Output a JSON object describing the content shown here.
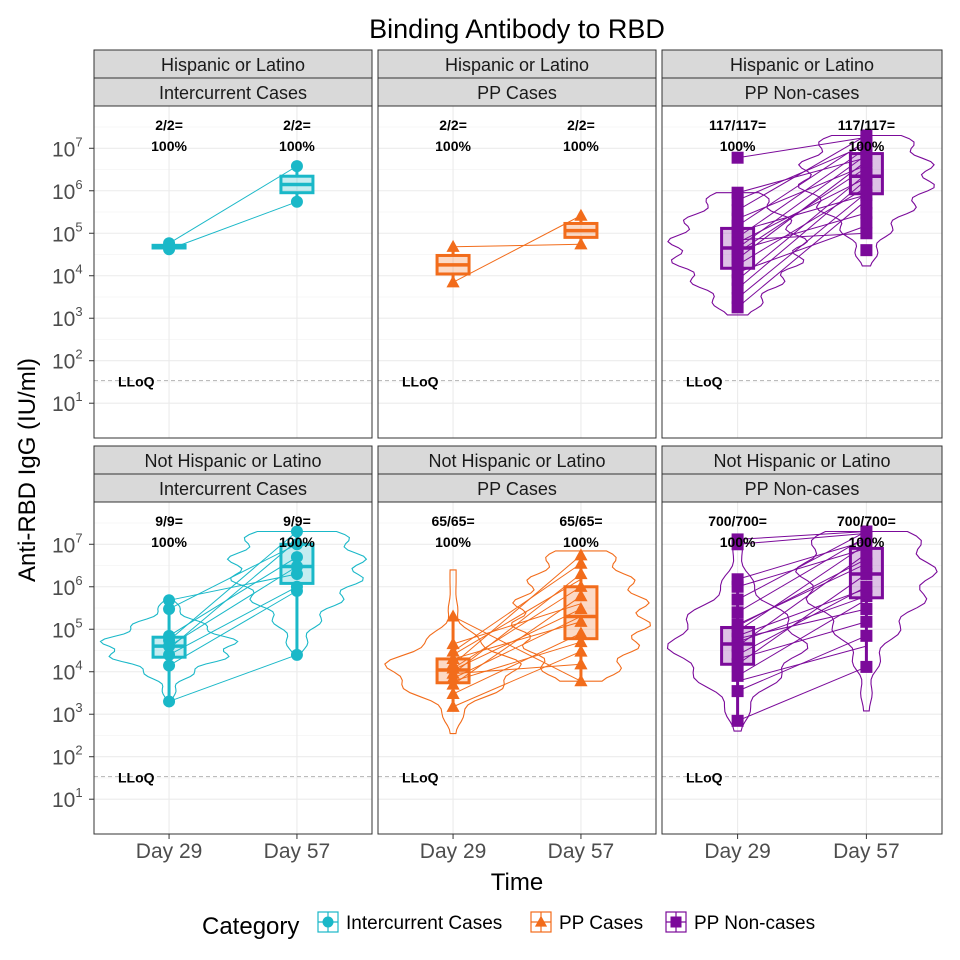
{
  "chart_data": {
    "type": "box-violin",
    "title": "Binding Antibody to RBD",
    "xlabel": "Time",
    "ylabel": "Anti-RBD IgG (IU/ml)",
    "y_scale": "log10",
    "ylim": [
      5,
      30000000
    ],
    "y_ticks": [
      {
        "value": 10,
        "base": "10",
        "exp": "1"
      },
      {
        "value": 100,
        "base": "10",
        "exp": "2"
      },
      {
        "value": 1000,
        "base": "10",
        "exp": "3"
      },
      {
        "value": 10000,
        "base": "10",
        "exp": "4"
      },
      {
        "value": 100000,
        "base": "10",
        "exp": "5"
      },
      {
        "value": 1000000,
        "base": "10",
        "exp": "6"
      },
      {
        "value": 10000000,
        "base": "10",
        "exp": "7"
      }
    ],
    "categories": [
      "Day 29",
      "Day 57"
    ],
    "lloq": {
      "value": 34,
      "label": "LLoQ"
    },
    "legend": {
      "title": "Category",
      "position": "bottom",
      "items": [
        {
          "label": "Intercurrent Cases",
          "shape": "circle",
          "color": "#1AB8C8"
        },
        {
          "label": "PP Cases",
          "shape": "triangle",
          "color": "#F26C1B"
        },
        {
          "label": "PP Non-cases",
          "shape": "square",
          "color": "#7B0A9A"
        }
      ]
    },
    "panels": [
      {
        "row_label": "Hispanic or Latino",
        "col_label": "Intercurrent Cases",
        "category": 0,
        "violin": false,
        "annotations": [
          {
            "line1": "2/2=",
            "line2": "100%"
          },
          {
            "line1": "2/2=",
            "line2": "100%"
          }
        ],
        "boxes": [
          {
            "q1": 45000,
            "median": 48000,
            "q3": 52000,
            "low": 42000,
            "high": 58000
          },
          {
            "q1": 900000,
            "median": 1400000,
            "q3": 2200000,
            "low": 550000,
            "high": 3800000
          }
        ],
        "points": [
          [
            42000,
            58000
          ],
          [
            550000,
            3800000
          ]
        ],
        "paths": [
          [
            42000,
            550000
          ],
          [
            58000,
            3800000
          ]
        ]
      },
      {
        "row_label": "Hispanic or Latino",
        "col_label": "PP Cases",
        "category": 1,
        "violin": false,
        "annotations": [
          {
            "line1": "2/2=",
            "line2": "100%"
          },
          {
            "line1": "2/2=",
            "line2": "100%"
          }
        ],
        "boxes": [
          {
            "q1": 11000,
            "median": 18000,
            "q3": 30000,
            "low": 7000,
            "high": 48000
          },
          {
            "q1": 80000,
            "median": 115000,
            "q3": 170000,
            "low": 55000,
            "high": 260000
          }
        ],
        "points": [
          [
            7000,
            48000
          ],
          [
            55000,
            260000
          ]
        ],
        "paths": [
          [
            7000,
            260000
          ],
          [
            48000,
            55000
          ]
        ]
      },
      {
        "row_label": "Hispanic or Latino",
        "col_label": "PP Non-cases",
        "category": 2,
        "violin": true,
        "violin_range": [
          [
            1200,
            900000
          ],
          [
            17000,
            20000000
          ]
        ],
        "annotations": [
          {
            "line1": "117/117=",
            "line2": "100%"
          },
          {
            "line1": "117/117=",
            "line2": "100%"
          }
        ],
        "boxes": [
          {
            "q1": 15000,
            "median": 45000,
            "q3": 130000,
            "low": 1800,
            "high": 900000
          },
          {
            "q1": 850000,
            "median": 2200000,
            "q3": 7500000,
            "low": 150000,
            "high": 20000000
          }
        ],
        "points": [
          [
            1800,
            3000,
            5000,
            8000,
            12000,
            18000,
            25000,
            35000,
            45000,
            60000,
            80000,
            110000,
            150000,
            220000,
            350000,
            600000,
            900000,
            6000000
          ],
          [
            40000,
            100000,
            180000,
            300000,
            500000,
            800000,
            1200000,
            1800000,
            2500000,
            3500000,
            5000000,
            7000000,
            10000000,
            15000000,
            20000000
          ]
        ],
        "paths": [
          [
            1800,
            600000
          ],
          [
            3000,
            900000
          ],
          [
            5000,
            1800000
          ],
          [
            8000,
            2500000
          ],
          [
            12000,
            150000
          ],
          [
            18000,
            1200000
          ],
          [
            25000,
            5000000
          ],
          [
            35000,
            3500000
          ],
          [
            45000,
            7000000
          ],
          [
            60000,
            2000000
          ],
          [
            80000,
            10000000
          ],
          [
            110000,
            800000
          ],
          [
            150000,
            15000000
          ],
          [
            220000,
            4000000
          ],
          [
            350000,
            20000000
          ],
          [
            600000,
            12000000
          ],
          [
            900000,
            6000000
          ],
          [
            6000000,
            18000000
          ],
          [
            40000,
            300000
          ],
          [
            70000,
            100000
          ]
        ]
      },
      {
        "row_label": "Not Hispanic or Latino",
        "col_label": "Intercurrent Cases",
        "category": 0,
        "violin": true,
        "violin_range": [
          [
            2000,
            450000
          ],
          [
            25000,
            20000000
          ]
        ],
        "annotations": [
          {
            "line1": "9/9=",
            "line2": "100%"
          },
          {
            "line1": "9/9=",
            "line2": "100%"
          }
        ],
        "boxes": [
          {
            "q1": 22000,
            "median": 40000,
            "q3": 65000,
            "low": 2000,
            "high": 480000
          },
          {
            "q1": 1200000,
            "median": 3000000,
            "q3": 10000000,
            "low": 25000,
            "high": 20000000
          }
        ],
        "points": [
          [
            2000,
            14000,
            25000,
            40000,
            55000,
            70000,
            300000,
            480000
          ],
          [
            25000,
            800000,
            1000000,
            2000000,
            3000000,
            5000000,
            10000000,
            20000000
          ]
        ],
        "paths": [
          [
            2000,
            25000
          ],
          [
            14000,
            800000
          ],
          [
            25000,
            1000000
          ],
          [
            40000,
            3000000
          ],
          [
            55000,
            20000000
          ],
          [
            70000,
            5000000
          ],
          [
            300000,
            10000000
          ],
          [
            480000,
            2000000
          ],
          [
            35000,
            12000000
          ]
        ]
      },
      {
        "row_label": "Not Hispanic or Latino",
        "col_label": "PP Cases",
        "category": 1,
        "violin": true,
        "violin_range": [
          [
            350,
            2500000
          ],
          [
            6000,
            7000000
          ]
        ],
        "annotations": [
          {
            "line1": "65/65=",
            "line2": "100%"
          },
          {
            "line1": "65/65=",
            "line2": "100%"
          }
        ],
        "boxes": [
          {
            "q1": 5500,
            "median": 11000,
            "q3": 20000,
            "low": 1500,
            "high": 200000
          },
          {
            "q1": 60000,
            "median": 200000,
            "q3": 1000000,
            "low": 6000,
            "high": 5500000
          }
        ],
        "points": [
          [
            1500,
            3000,
            5000,
            7000,
            9000,
            12000,
            15000,
            20000,
            30000,
            45000,
            200000
          ],
          [
            6000,
            15000,
            30000,
            50000,
            80000,
            150000,
            300000,
            600000,
            1000000,
            2000000,
            3500000,
            5500000
          ]
        ],
        "paths": [
          [
            1500,
            30000
          ],
          [
            3000,
            80000
          ],
          [
            5000,
            600000
          ],
          [
            7000,
            200000
          ],
          [
            9000,
            2000000
          ],
          [
            12000,
            1000000
          ],
          [
            15000,
            5500000
          ],
          [
            20000,
            150000
          ],
          [
            30000,
            3500000
          ],
          [
            45000,
            400000
          ],
          [
            200000,
            6000
          ],
          [
            9000,
            15000
          ],
          [
            6000,
            50000
          ],
          [
            11000,
            300000
          ],
          [
            25000,
            1500000
          ]
        ]
      },
      {
        "row_label": "Not Hispanic or Latino",
        "col_label": "PP Non-cases",
        "category": 2,
        "violin": true,
        "violin_range": [
          [
            400,
            15000000
          ],
          [
            1200,
            20000000
          ]
        ],
        "annotations": [
          {
            "line1": "700/700=",
            "line2": "100%"
          },
          {
            "line1": "700/700=",
            "line2": "100%"
          }
        ],
        "boxes": [
          {
            "q1": 15000,
            "median": 45000,
            "q3": 110000,
            "low": 700,
            "high": 1500000
          },
          {
            "q1": 550000,
            "median": 2000000,
            "q3": 8000000,
            "low": 13000,
            "high": 20000000
          }
        ],
        "points": [
          [
            700,
            3500,
            8000,
            15000,
            25000,
            40000,
            60000,
            90000,
            130000,
            250000,
            500000,
            1000000,
            1500000,
            10000000,
            13000000
          ],
          [
            13000,
            70000,
            150000,
            300000,
            600000,
            1000000,
            2000000,
            3500000,
            6000000,
            10000000,
            15000000,
            20000000
          ]
        ],
        "paths": [
          [
            700,
            13000
          ],
          [
            3500,
            70000
          ],
          [
            8000,
            500000
          ],
          [
            15000,
            2000000
          ],
          [
            25000,
            1000000
          ],
          [
            40000,
            6000000
          ],
          [
            60000,
            300000
          ],
          [
            90000,
            10000000
          ],
          [
            130000,
            3500000
          ],
          [
            250000,
            15000000
          ],
          [
            500000,
            20000000
          ],
          [
            1000000,
            8000000
          ],
          [
            1500000,
            12000000
          ],
          [
            10000000,
            18000000
          ],
          [
            13000000,
            20000000
          ],
          [
            20000,
            150000
          ],
          [
            50000,
            600000
          ],
          [
            6000,
            40000
          ],
          [
            120000,
            4500000
          ],
          [
            70000,
            900000
          ]
        ]
      }
    ]
  }
}
